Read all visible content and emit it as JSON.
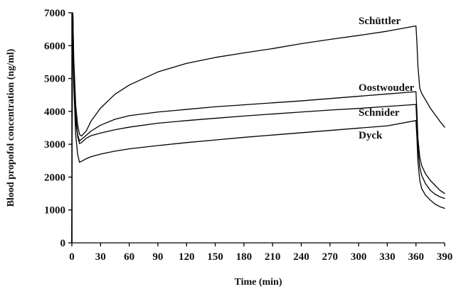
{
  "chart_data": {
    "type": "line",
    "title": "",
    "xlabel": "Time (min)",
    "ylabel": "Blood propofol concentration (ng/ml)",
    "xlim": [
      0,
      390
    ],
    "ylim": [
      0,
      7000
    ],
    "x_ticks": [
      0,
      30,
      60,
      90,
      120,
      150,
      180,
      210,
      240,
      270,
      300,
      330,
      360,
      390
    ],
    "y_ticks": [
      0,
      1000,
      2000,
      3000,
      4000,
      5000,
      6000,
      7000
    ],
    "grid": false,
    "legend": "labels placed next to each curve",
    "series": [
      {
        "name": "Schüttler",
        "x": [
          0,
          0.5,
          1,
          2,
          4,
          6,
          8,
          10,
          15,
          20,
          30,
          45,
          60,
          90,
          120,
          150,
          180,
          210,
          240,
          270,
          300,
          330,
          360,
          361,
          362,
          364,
          366,
          370,
          375,
          380,
          385,
          390
        ],
        "y": [
          0,
          6800,
          7000,
          5600,
          4200,
          3600,
          3300,
          3250,
          3400,
          3700,
          4100,
          4520,
          4800,
          5200,
          5460,
          5640,
          5780,
          5910,
          6060,
          6190,
          6310,
          6440,
          6600,
          6100,
          5400,
          4700,
          4550,
          4350,
          4100,
          3900,
          3700,
          3520
        ]
      },
      {
        "name": "Oostwouder",
        "x": [
          0,
          0.5,
          1,
          2,
          4,
          6,
          8,
          10,
          15,
          20,
          30,
          45,
          60,
          90,
          120,
          150,
          180,
          210,
          240,
          270,
          300,
          330,
          360,
          361,
          362,
          364,
          366,
          370,
          375,
          380,
          385,
          390
        ],
        "y": [
          0,
          6500,
          7000,
          5300,
          3900,
          3300,
          3100,
          3150,
          3270,
          3400,
          3580,
          3760,
          3870,
          3980,
          4060,
          4140,
          4200,
          4260,
          4320,
          4390,
          4460,
          4530,
          4600,
          4000,
          3200,
          2600,
          2350,
          2100,
          1900,
          1750,
          1600,
          1500
        ]
      },
      {
        "name": "Schnider",
        "x": [
          0,
          0.5,
          1,
          2,
          4,
          6,
          8,
          10,
          15,
          20,
          30,
          45,
          60,
          90,
          120,
          150,
          180,
          210,
          240,
          270,
          300,
          330,
          360,
          361,
          362,
          364,
          366,
          370,
          375,
          380,
          385,
          390
        ],
        "y": [
          0,
          6200,
          7000,
          5000,
          3700,
          3250,
          3020,
          3050,
          3180,
          3260,
          3340,
          3440,
          3520,
          3640,
          3720,
          3790,
          3860,
          3920,
          3980,
          4040,
          4090,
          4150,
          4210,
          3600,
          2900,
          2300,
          2050,
          1800,
          1600,
          1480,
          1400,
          1350
        ]
      },
      {
        "name": "Dyck",
        "x": [
          0,
          0.5,
          1,
          2,
          4,
          6,
          8,
          10,
          15,
          20,
          30,
          45,
          60,
          90,
          120,
          150,
          180,
          210,
          240,
          270,
          300,
          330,
          360,
          361,
          362,
          364,
          366,
          370,
          375,
          380,
          385,
          390
        ],
        "y": [
          0,
          5800,
          7000,
          4800,
          3300,
          2700,
          2450,
          2480,
          2560,
          2620,
          2700,
          2790,
          2860,
          2960,
          3050,
          3130,
          3210,
          3280,
          3350,
          3420,
          3490,
          3560,
          3720,
          3200,
          2500,
          1900,
          1650,
          1450,
          1300,
          1180,
          1100,
          1050
        ]
      }
    ],
    "annotations": [
      {
        "text": "Schüttler",
        "series": "Schüttler"
      },
      {
        "text": "Oostwouder",
        "series": "Oostwouder"
      },
      {
        "text": "Schnider",
        "series": "Schnider"
      },
      {
        "text": "Dyck",
        "series": "Dyck"
      }
    ]
  }
}
